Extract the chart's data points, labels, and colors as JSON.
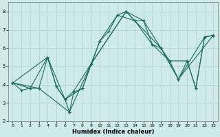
{
  "xlabel": "Humidex (Indice chaleur)",
  "bg_color": "#ceeaea",
  "grid_color": "#b8d8d8",
  "line_color": "#1a6b5a",
  "xlim": [
    -0.5,
    23.5
  ],
  "ylim": [
    2.0,
    8.5
  ],
  "yticks": [
    2,
    3,
    4,
    5,
    6,
    7,
    8
  ],
  "xticks": [
    0,
    1,
    2,
    3,
    4,
    5,
    6,
    7,
    8,
    9,
    10,
    11,
    12,
    13,
    14,
    15,
    16,
    17,
    18,
    19,
    20,
    21,
    22,
    23
  ],
  "series1": [
    [
      0,
      4.1
    ],
    [
      1,
      3.7
    ],
    [
      2,
      3.8
    ],
    [
      3,
      3.8
    ],
    [
      4,
      5.5
    ],
    [
      5,
      3.9
    ],
    [
      6,
      3.2
    ],
    [
      6.5,
      2.5
    ],
    [
      7,
      3.6
    ],
    [
      8,
      3.8
    ],
    [
      9,
      5.15
    ],
    [
      10,
      6.4
    ],
    [
      11,
      6.9
    ],
    [
      12,
      7.8
    ],
    [
      13,
      8.0
    ],
    [
      14,
      7.5
    ],
    [
      15,
      7.5
    ],
    [
      16,
      6.2
    ],
    [
      17,
      6.0
    ],
    [
      18,
      5.3
    ],
    [
      19,
      4.3
    ],
    [
      20,
      5.3
    ],
    [
      21,
      3.8
    ],
    [
      22,
      6.6
    ],
    [
      23,
      6.7
    ]
  ],
  "series2": [
    [
      0,
      4.1
    ],
    [
      4,
      5.5
    ],
    [
      5,
      3.9
    ],
    [
      6,
      3.2
    ],
    [
      7,
      3.65
    ],
    [
      9,
      5.15
    ],
    [
      13,
      8.0
    ],
    [
      15,
      7.5
    ],
    [
      17,
      6.0
    ],
    [
      19,
      4.3
    ],
    [
      22,
      6.6
    ],
    [
      23,
      6.7
    ]
  ],
  "series3": [
    [
      0,
      4.1
    ],
    [
      2,
      3.8
    ],
    [
      4,
      5.5
    ],
    [
      6,
      3.2
    ],
    [
      8,
      3.8
    ],
    [
      10,
      6.4
    ],
    [
      12,
      7.8
    ],
    [
      14,
      7.5
    ],
    [
      16,
      6.2
    ],
    [
      18,
      5.3
    ],
    [
      20,
      5.3
    ],
    [
      21,
      3.8
    ],
    [
      22,
      6.6
    ],
    [
      23,
      6.7
    ]
  ],
  "series4": [
    [
      0,
      4.1
    ],
    [
      3,
      3.8
    ],
    [
      6.5,
      2.5
    ],
    [
      9,
      5.15
    ],
    [
      13,
      8.0
    ],
    [
      17,
      6.0
    ],
    [
      19,
      4.3
    ],
    [
      23,
      6.7
    ]
  ]
}
